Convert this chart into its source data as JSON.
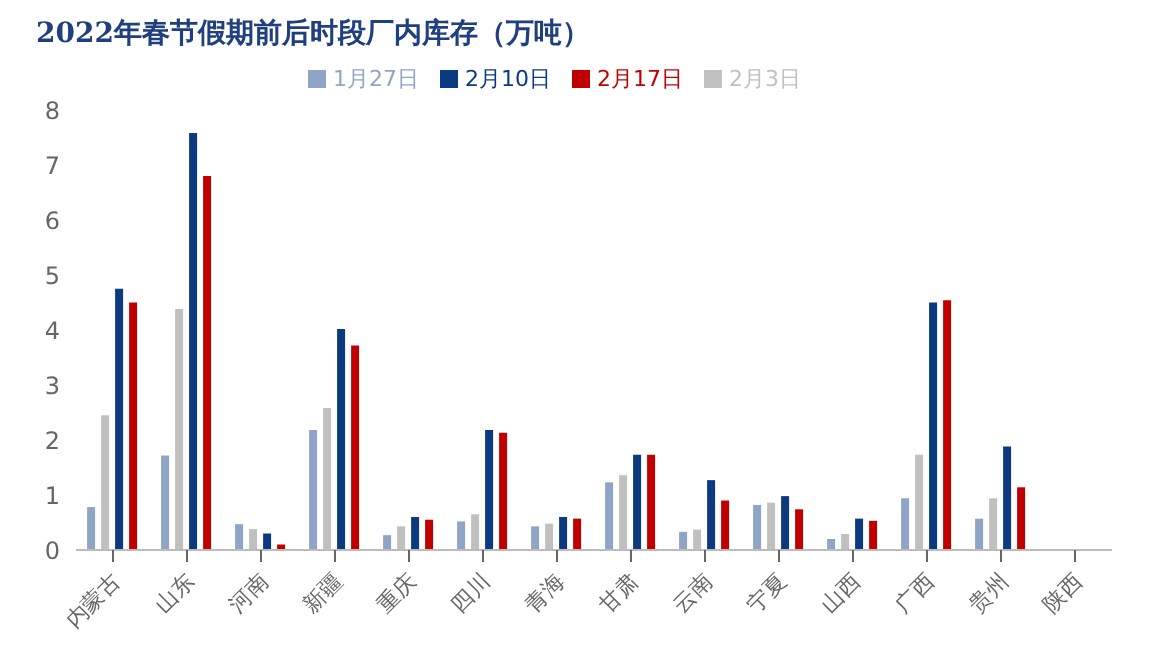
{
  "chart_data": {
    "type": "bar",
    "title": "2022年春节假期前后时段厂内库存（万吨）",
    "categories": [
      "内蒙古",
      "山东",
      "河南",
      "新疆",
      "重庆",
      "四川",
      "青海",
      "甘肃",
      "云南",
      "宁夏",
      "山西",
      "广西",
      "贵州",
      "陕西"
    ],
    "series": [
      {
        "name": "1月27日",
        "color": "#8ea5c8",
        "values": [
          0.78,
          1.72,
          0.47,
          2.18,
          0.27,
          0.52,
          0.43,
          1.23,
          0.33,
          0.82,
          0.2,
          0.94,
          0.57,
          null
        ]
      },
      {
        "name": "2月3日",
        "color": "#c0c0c0",
        "values": [
          2.45,
          4.38,
          0.38,
          2.58,
          0.43,
          0.65,
          0.48,
          1.36,
          0.37,
          0.86,
          0.29,
          1.73,
          0.94,
          null
        ]
      },
      {
        "name": "2月10日",
        "color": "#0b3a80",
        "values": [
          4.75,
          7.58,
          0.3,
          4.02,
          0.6,
          2.18,
          0.6,
          1.73,
          1.27,
          0.98,
          0.57,
          4.5,
          1.88,
          null
        ]
      },
      {
        "name": "2月17日",
        "color": "#c00000",
        "values": [
          4.5,
          6.8,
          0.1,
          3.72,
          0.55,
          2.13,
          0.57,
          1.73,
          0.9,
          0.74,
          0.53,
          4.54,
          1.14,
          null
        ]
      }
    ],
    "ylim": [
      0,
      8
    ],
    "yticks": [
      0,
      1,
      2,
      3,
      4,
      5,
      6,
      7,
      8
    ],
    "grid": false,
    "legend": "top"
  }
}
